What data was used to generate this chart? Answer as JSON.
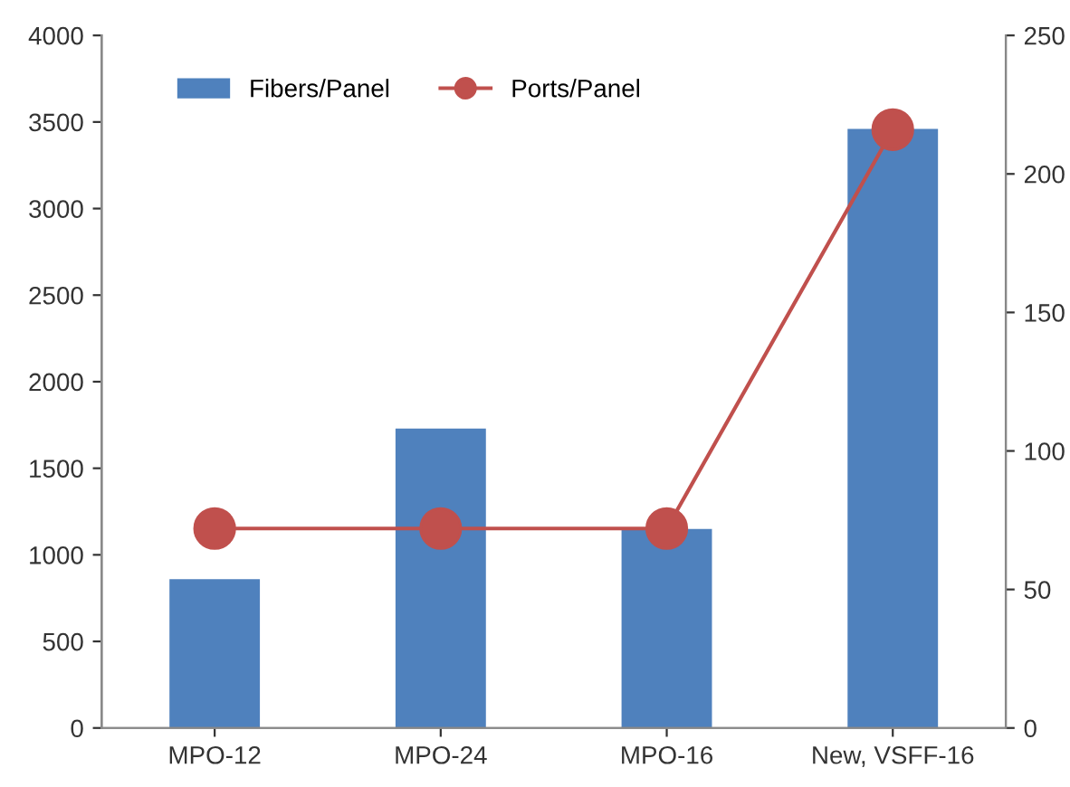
{
  "chart_data": {
    "type": "bar",
    "categories": [
      "MPO-12",
      "MPO-24",
      "MPO-16",
      "New, VSFF-16"
    ],
    "series": [
      {
        "name": "Fibers/Panel",
        "color": "#4f81bd",
        "values": [
          860,
          1730,
          1150,
          3460
        ]
      },
      {
        "name": "Ports/Panel",
        "type": "line",
        "axis": "y2",
        "color": "#c0504d",
        "marker": "circle",
        "values": [
          72,
          72,
          72,
          216
        ]
      }
    ],
    "ylim": [
      0,
      4000
    ],
    "yticks": [
      0,
      500,
      1000,
      1500,
      2000,
      2500,
      3000,
      3500,
      4000
    ],
    "y2lim": [
      0,
      250
    ],
    "y2ticks": [
      0,
      50,
      100,
      150,
      200,
      250
    ],
    "grid": false,
    "legend": "top left"
  }
}
